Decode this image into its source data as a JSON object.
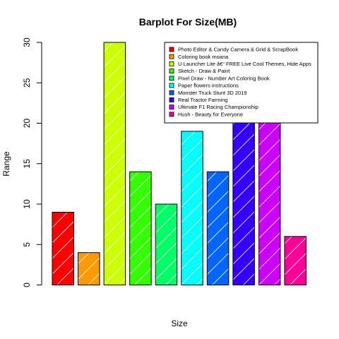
{
  "chart_data": {
    "type": "bar",
    "title": "Barplot For Size(MB)",
    "xlabel": "Size",
    "ylabel": "Range",
    "ylim": [
      0,
      30
    ],
    "yticks": [
      0,
      5,
      10,
      15,
      20,
      25,
      30
    ],
    "grid": false,
    "legend_position": "top-right",
    "bar_pattern": "diagonal white lines",
    "categories": [
      "Photo Editor & Candy Camera & Grid & ScrapBook",
      "Coloring book moana",
      "U Launcher Lite â€“ FREE Live Cool Themes, Hide Apps",
      "Sketch - Draw & Paint",
      "Pixel Draw - Number Art Coloring Book",
      "Paper flowers instructions",
      "Monster Truck Stunt 3D 2019",
      "Real Tractor Farming",
      "Ultimate F1 Racing Championship",
      "Hush - Beauty for Everyone"
    ],
    "values": [
      9,
      4,
      30,
      14,
      10,
      19,
      14,
      21,
      21,
      6
    ],
    "colors": [
      "#FF0000",
      "#FF9900",
      "#CCFF00",
      "#33FF00",
      "#00FF66",
      "#00FFFF",
      "#0066FF",
      "#3300FF",
      "#CC00FF",
      "#FF0099"
    ]
  }
}
